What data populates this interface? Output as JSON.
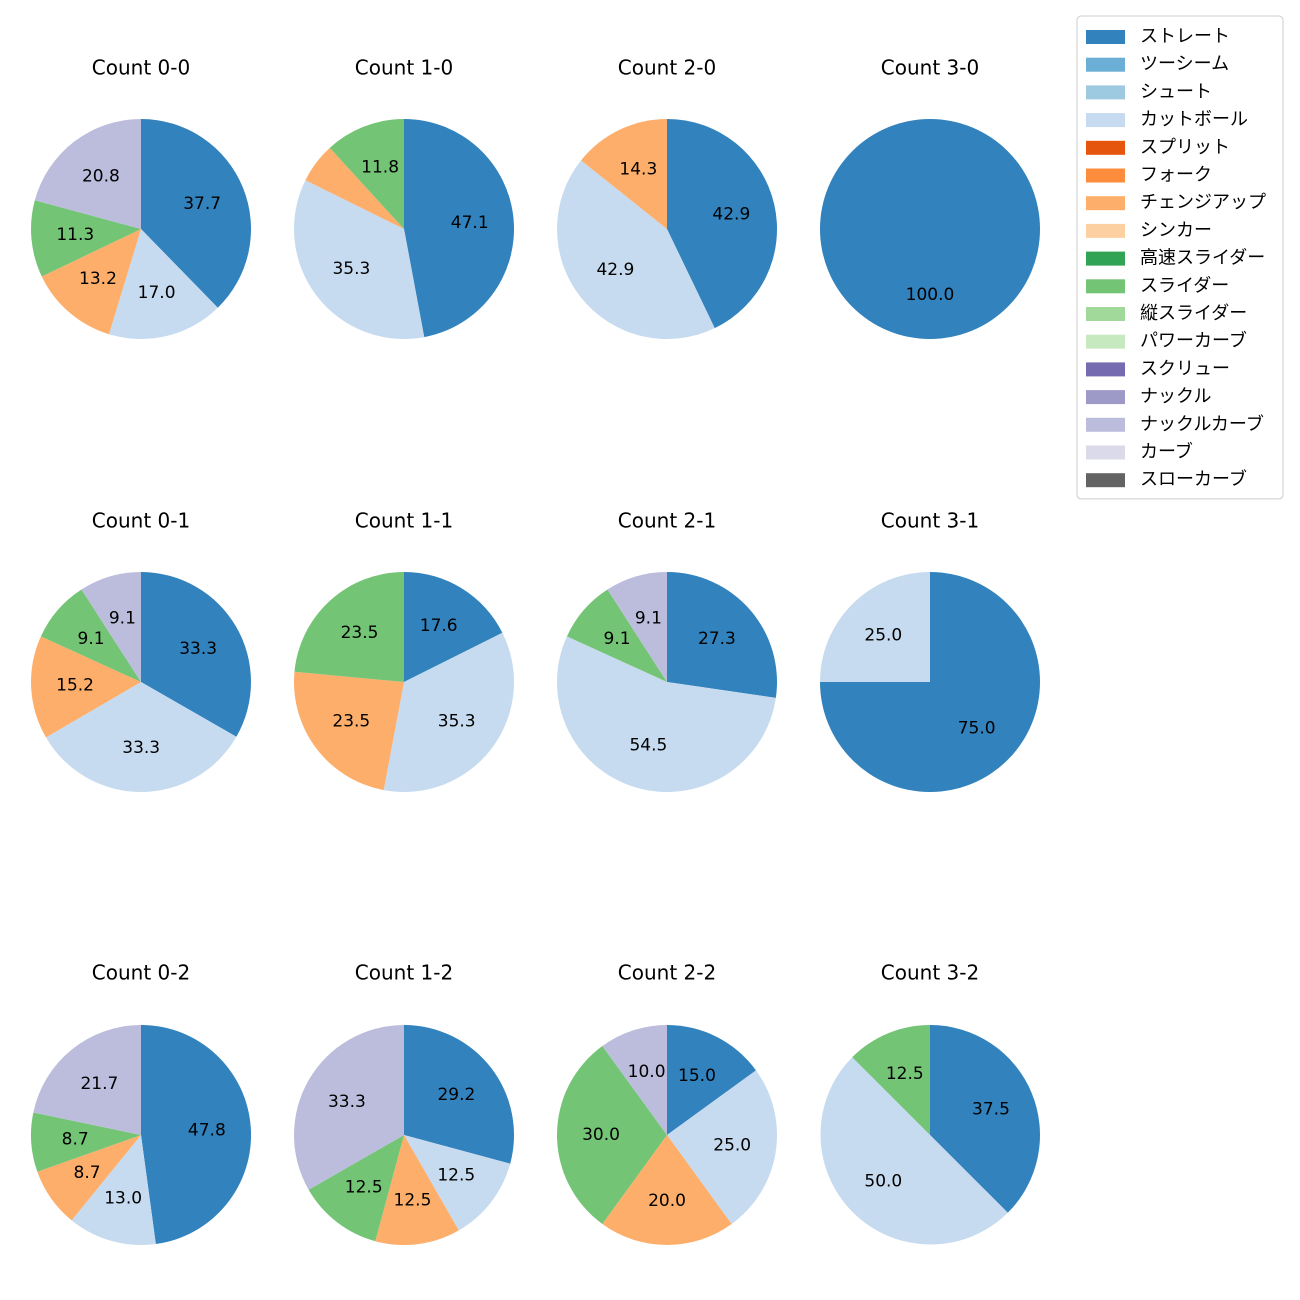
{
  "chart_data": {
    "type": "pie",
    "legend": {
      "placement": "top-right",
      "entries": [
        {
          "label": "ストレート",
          "color": "#3182bd"
        },
        {
          "label": "ツーシーム",
          "color": "#6baed6"
        },
        {
          "label": "シュート",
          "color": "#9ecae1"
        },
        {
          "label": "カットボール",
          "color": "#c6dbef"
        },
        {
          "label": "スプリット",
          "color": "#e6550d"
        },
        {
          "label": "フォーク",
          "color": "#fd8d3c"
        },
        {
          "label": "チェンジアップ",
          "color": "#fdae6b"
        },
        {
          "label": "シンカー",
          "color": "#fdd0a2"
        },
        {
          "label": "高速スライダー",
          "color": "#31a354"
        },
        {
          "label": "スライダー",
          "color": "#74c476"
        },
        {
          "label": "縦スライダー",
          "color": "#a1d99b"
        },
        {
          "label": "パワーカーブ",
          "color": "#c7e9c0"
        },
        {
          "label": "スクリュー",
          "color": "#756bb1"
        },
        {
          "label": "ナックル",
          "color": "#9e9ac8"
        },
        {
          "label": "ナックルカーブ",
          "color": "#bcbddc"
        },
        {
          "label": "カーブ",
          "color": "#dadaeb"
        },
        {
          "label": "スローカーブ",
          "color": "#636363"
        }
      ]
    },
    "pies": [
      {
        "title": "Count 0-0",
        "slices": [
          {
            "pitch": "ストレート",
            "value": 37.7,
            "label": "37.7"
          },
          {
            "pitch": "カットボール",
            "value": 17.0,
            "label": "17.0"
          },
          {
            "pitch": "チェンジアップ",
            "value": 13.2,
            "label": "13.2"
          },
          {
            "pitch": "スライダー",
            "value": 11.3,
            "label": "11.3"
          },
          {
            "pitch": "ナックルカーブ",
            "value": 20.8,
            "label": "20.8"
          }
        ]
      },
      {
        "title": "Count 1-0",
        "slices": [
          {
            "pitch": "ストレート",
            "value": 47.1,
            "label": "47.1"
          },
          {
            "pitch": "カットボール",
            "value": 35.3,
            "label": "35.3"
          },
          {
            "pitch": "チェンジアップ",
            "value": 5.9,
            "label": ""
          },
          {
            "pitch": "スライダー",
            "value": 11.8,
            "label": "11.8"
          }
        ]
      },
      {
        "title": "Count 2-0",
        "slices": [
          {
            "pitch": "ストレート",
            "value": 42.9,
            "label": "42.9"
          },
          {
            "pitch": "カットボール",
            "value": 42.9,
            "label": "42.9"
          },
          {
            "pitch": "チェンジアップ",
            "value": 14.3,
            "label": "14.3"
          }
        ]
      },
      {
        "title": "Count 3-0",
        "slices": [
          {
            "pitch": "ストレート",
            "value": 100.0,
            "label": "100.0"
          }
        ]
      },
      {
        "title": "Count 0-1",
        "slices": [
          {
            "pitch": "ストレート",
            "value": 33.3,
            "label": "33.3"
          },
          {
            "pitch": "カットボール",
            "value": 33.3,
            "label": "33.3"
          },
          {
            "pitch": "チェンジアップ",
            "value": 15.2,
            "label": "15.2"
          },
          {
            "pitch": "スライダー",
            "value": 9.1,
            "label": "9.1"
          },
          {
            "pitch": "ナックルカーブ",
            "value": 9.1,
            "label": "9.1"
          }
        ]
      },
      {
        "title": "Count 1-1",
        "slices": [
          {
            "pitch": "ストレート",
            "value": 17.6,
            "label": "17.6"
          },
          {
            "pitch": "カットボール",
            "value": 35.3,
            "label": "35.3"
          },
          {
            "pitch": "チェンジアップ",
            "value": 23.5,
            "label": "23.5"
          },
          {
            "pitch": "スライダー",
            "value": 23.5,
            "label": "23.5"
          }
        ]
      },
      {
        "title": "Count 2-1",
        "slices": [
          {
            "pitch": "ストレート",
            "value": 27.3,
            "label": "27.3"
          },
          {
            "pitch": "カットボール",
            "value": 54.5,
            "label": "54.5"
          },
          {
            "pitch": "スライダー",
            "value": 9.1,
            "label": "9.1"
          },
          {
            "pitch": "ナックルカーブ",
            "value": 9.1,
            "label": "9.1"
          }
        ]
      },
      {
        "title": "Count 3-1",
        "slices": [
          {
            "pitch": "ストレート",
            "value": 75.0,
            "label": "75.0"
          },
          {
            "pitch": "カットボール",
            "value": 25.0,
            "label": "25.0"
          }
        ]
      },
      {
        "title": "Count 0-2",
        "slices": [
          {
            "pitch": "ストレート",
            "value": 47.8,
            "label": "47.8"
          },
          {
            "pitch": "カットボール",
            "value": 13.0,
            "label": "13.0"
          },
          {
            "pitch": "チェンジアップ",
            "value": 8.7,
            "label": "8.7"
          },
          {
            "pitch": "スライダー",
            "value": 8.7,
            "label": "8.7"
          },
          {
            "pitch": "ナックルカーブ",
            "value": 21.7,
            "label": "21.7"
          }
        ]
      },
      {
        "title": "Count 1-2",
        "slices": [
          {
            "pitch": "ストレート",
            "value": 29.2,
            "label": "29.2"
          },
          {
            "pitch": "カットボール",
            "value": 12.5,
            "label": "12.5"
          },
          {
            "pitch": "チェンジアップ",
            "value": 12.5,
            "label": "12.5"
          },
          {
            "pitch": "スライダー",
            "value": 12.5,
            "label": "12.5"
          },
          {
            "pitch": "ナックルカーブ",
            "value": 33.3,
            "label": "33.3"
          }
        ]
      },
      {
        "title": "Count 2-2",
        "slices": [
          {
            "pitch": "ストレート",
            "value": 15.0,
            "label": "15.0"
          },
          {
            "pitch": "カットボール",
            "value": 25.0,
            "label": "25.0"
          },
          {
            "pitch": "チェンジアップ",
            "value": 20.0,
            "label": "20.0"
          },
          {
            "pitch": "スライダー",
            "value": 30.0,
            "label": "30.0"
          },
          {
            "pitch": "ナックルカーブ",
            "value": 10.0,
            "label": "10.0"
          }
        ]
      },
      {
        "title": "Count 3-2",
        "slices": [
          {
            "pitch": "ストレート",
            "value": 37.5,
            "label": "37.5"
          },
          {
            "pitch": "カットボール",
            "value": 50.0,
            "label": "50.0"
          },
          {
            "pitch": "スライダー",
            "value": 12.5,
            "label": "12.5"
          }
        ]
      }
    ]
  }
}
